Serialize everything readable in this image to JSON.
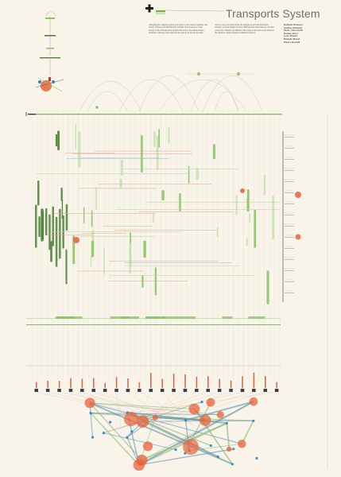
{
  "header": {
    "title": "Transports System",
    "logo_text": "",
    "accent": "#6fb33a",
    "dark": "#1e1e1e"
  },
  "intro": {
    "col1": "Analysing the transport system gives back a wide range in quantity and variety of issues and information available. We focused our work mainly on the infrastructural system and on how the infrastructures intended to develop and transform the territory in the last decades.",
    "col2": "As far as it is concerned about the analysis of new infrastructures systems, we have pointed out how different rules may intersect. In other words, how citizens can influence the action of the main actors and how the transport system develops within the territory."
  },
  "authors": [
    "Raffaele Briatore",
    "Andrea Ghislotti",
    "Paolo Ciuccarelli",
    "Donato Ricci",
    "Luca Masud",
    "Michele Mauri",
    "Mauro Restelli"
  ],
  "colors": {
    "background": "#f8f4ea",
    "green_light": "#c8e3b0",
    "green": "#8cc46a",
    "green_dark": "#4f7f3a",
    "orange": "#e8623a",
    "blue": "#2a86c8",
    "grey": "#b9b9b0"
  }
}
